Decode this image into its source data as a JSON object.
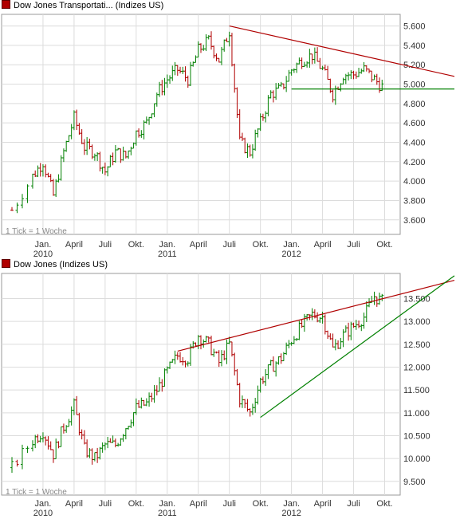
{
  "charts": [
    {
      "title": "Dow Jones Transportati... (Indizes US)",
      "footer": "1 Tick = 1 Woche",
      "y_ticks": [
        "5.600",
        "5.400",
        "5.200",
        "5.000",
        "4.800",
        "4.600",
        "4.400",
        "4.200",
        "4.000",
        "3.800",
        "3.600"
      ],
      "x_ticks": [
        "Jan.",
        "April",
        "Juli",
        "Okt.",
        "Jan.",
        "April",
        "Juli",
        "Okt.",
        "Jan.",
        "April",
        "Juli",
        "Okt."
      ],
      "year_labels": [
        "2010",
        "2011",
        "2012"
      ]
    },
    {
      "title": "Dow Jones (Indizes US)",
      "footer": "1 Tick = 1 Woche",
      "y_ticks": [
        "13.500",
        "13.000",
        "12.500",
        "12.000",
        "11.500",
        "11.000",
        "10.500",
        "10.000",
        "9.500"
      ],
      "x_ticks": [
        "Jan.",
        "April",
        "Juli",
        "Okt.",
        "Jan.",
        "April",
        "Juli",
        "Okt.",
        "Jan.",
        "April",
        "Juli",
        "Okt."
      ],
      "year_labels": [
        "2010",
        "2011",
        "2012"
      ]
    }
  ],
  "colors": {
    "up": "#008000",
    "down": "#b00000",
    "grid": "#dcdcdc",
    "resistance": "#b00000",
    "support": "#008000",
    "swatch": "#b00000"
  },
  "chart_data": [
    {
      "type": "bar",
      "title": "Dow Jones Transportati... (Indizes US)",
      "x_range": [
        "2009-09",
        "2012-11"
      ],
      "ylim": [
        3450,
        5720
      ],
      "weekly_close": [
        {
          "x": "2009-10",
          "y": 3700
        },
        {
          "x": "2009-12",
          "y": 4050
        },
        {
          "x": "2010-01",
          "y": 4200
        },
        {
          "x": "2010-02",
          "y": 3850
        },
        {
          "x": "2010-03",
          "y": 4300
        },
        {
          "x": "2010-04",
          "y": 4650
        },
        {
          "x": "2010-05",
          "y": 4350
        },
        {
          "x": "2010-06",
          "y": 4300
        },
        {
          "x": "2010-07",
          "y": 4100
        },
        {
          "x": "2010-08",
          "y": 4300
        },
        {
          "x": "2010-09",
          "y": 4250
        },
        {
          "x": "2010-10",
          "y": 4500
        },
        {
          "x": "2010-11",
          "y": 4600
        },
        {
          "x": "2010-12",
          "y": 4900
        },
        {
          "x": "2011-01",
          "y": 5050
        },
        {
          "x": "2011-02",
          "y": 5150
        },
        {
          "x": "2011-03",
          "y": 5050
        },
        {
          "x": "2011-04",
          "y": 5350
        },
        {
          "x": "2011-05",
          "y": 5450
        },
        {
          "x": "2011-06",
          "y": 5250
        },
        {
          "x": "2011-07",
          "y": 5550
        },
        {
          "x": "2011-08",
          "y": 4400
        },
        {
          "x": "2011-09",
          "y": 4300
        },
        {
          "x": "2011-10",
          "y": 4600
        },
        {
          "x": "2011-11",
          "y": 4900
        },
        {
          "x": "2011-12",
          "y": 4950
        },
        {
          "x": "2012-01",
          "y": 5150
        },
        {
          "x": "2012-02",
          "y": 5250
        },
        {
          "x": "2012-03",
          "y": 5300
        },
        {
          "x": "2012-04",
          "y": 5150
        },
        {
          "x": "2012-05",
          "y": 4900
        },
        {
          "x": "2012-06",
          "y": 5100
        },
        {
          "x": "2012-07",
          "y": 5100
        },
        {
          "x": "2012-08",
          "y": 5150
        },
        {
          "x": "2012-09",
          "y": 5050
        },
        {
          "x": "2012-10",
          "y": 4950
        }
      ],
      "resistance_line": [
        {
          "x": "2011-07",
          "y": 5600
        },
        {
          "x": "2012-11",
          "y": 5080
        }
      ],
      "support_line": [
        {
          "x": "2012-01",
          "y": 4950
        },
        {
          "x": "2012-11",
          "y": 4950
        }
      ]
    },
    {
      "type": "bar",
      "title": "Dow Jones (Indizes US)",
      "x_range": [
        "2009-09",
        "2012-11"
      ],
      "ylim": [
        9200,
        14050
      ],
      "weekly_close": [
        {
          "x": "2009-10",
          "y": 9800
        },
        {
          "x": "2009-12",
          "y": 10400
        },
        {
          "x": "2010-01",
          "y": 10600
        },
        {
          "x": "2010-02",
          "y": 10100
        },
        {
          "x": "2010-03",
          "y": 10700
        },
        {
          "x": "2010-04",
          "y": 11150
        },
        {
          "x": "2010-05",
          "y": 10200
        },
        {
          "x": "2010-06",
          "y": 10000
        },
        {
          "x": "2010-07",
          "y": 10300
        },
        {
          "x": "2010-08",
          "y": 10300
        },
        {
          "x": "2010-09",
          "y": 10700
        },
        {
          "x": "2010-10",
          "y": 11100
        },
        {
          "x": "2010-11",
          "y": 11200
        },
        {
          "x": "2010-12",
          "y": 11500
        },
        {
          "x": "2011-01",
          "y": 11900
        },
        {
          "x": "2011-02",
          "y": 12250
        },
        {
          "x": "2011-03",
          "y": 12200
        },
        {
          "x": "2011-04",
          "y": 12700
        },
        {
          "x": "2011-05",
          "y": 12500
        },
        {
          "x": "2011-06",
          "y": 12100
        },
        {
          "x": "2011-07",
          "y": 12500
        },
        {
          "x": "2011-08",
          "y": 11300
        },
        {
          "x": "2011-09",
          "y": 11000
        },
        {
          "x": "2011-10",
          "y": 11700
        },
        {
          "x": "2011-11",
          "y": 12000
        },
        {
          "x": "2011-12",
          "y": 12200
        },
        {
          "x": "2012-01",
          "y": 12600
        },
        {
          "x": "2012-02",
          "y": 12900
        },
        {
          "x": "2012-03",
          "y": 13150
        },
        {
          "x": "2012-04",
          "y": 13100
        },
        {
          "x": "2012-05",
          "y": 12400
        },
        {
          "x": "2012-06",
          "y": 12700
        },
        {
          "x": "2012-07",
          "y": 12900
        },
        {
          "x": "2012-08",
          "y": 13100
        },
        {
          "x": "2012-09",
          "y": 13550
        },
        {
          "x": "2012-10",
          "y": 13400
        }
      ],
      "resistance_line": [
        {
          "x": "2011-02",
          "y": 12350
        },
        {
          "x": "2012-11",
          "y": 13900
        }
      ],
      "support_line": [
        {
          "x": "2011-10",
          "y": 10900
        },
        {
          "x": "2012-11",
          "y": 14000
        }
      ]
    }
  ]
}
